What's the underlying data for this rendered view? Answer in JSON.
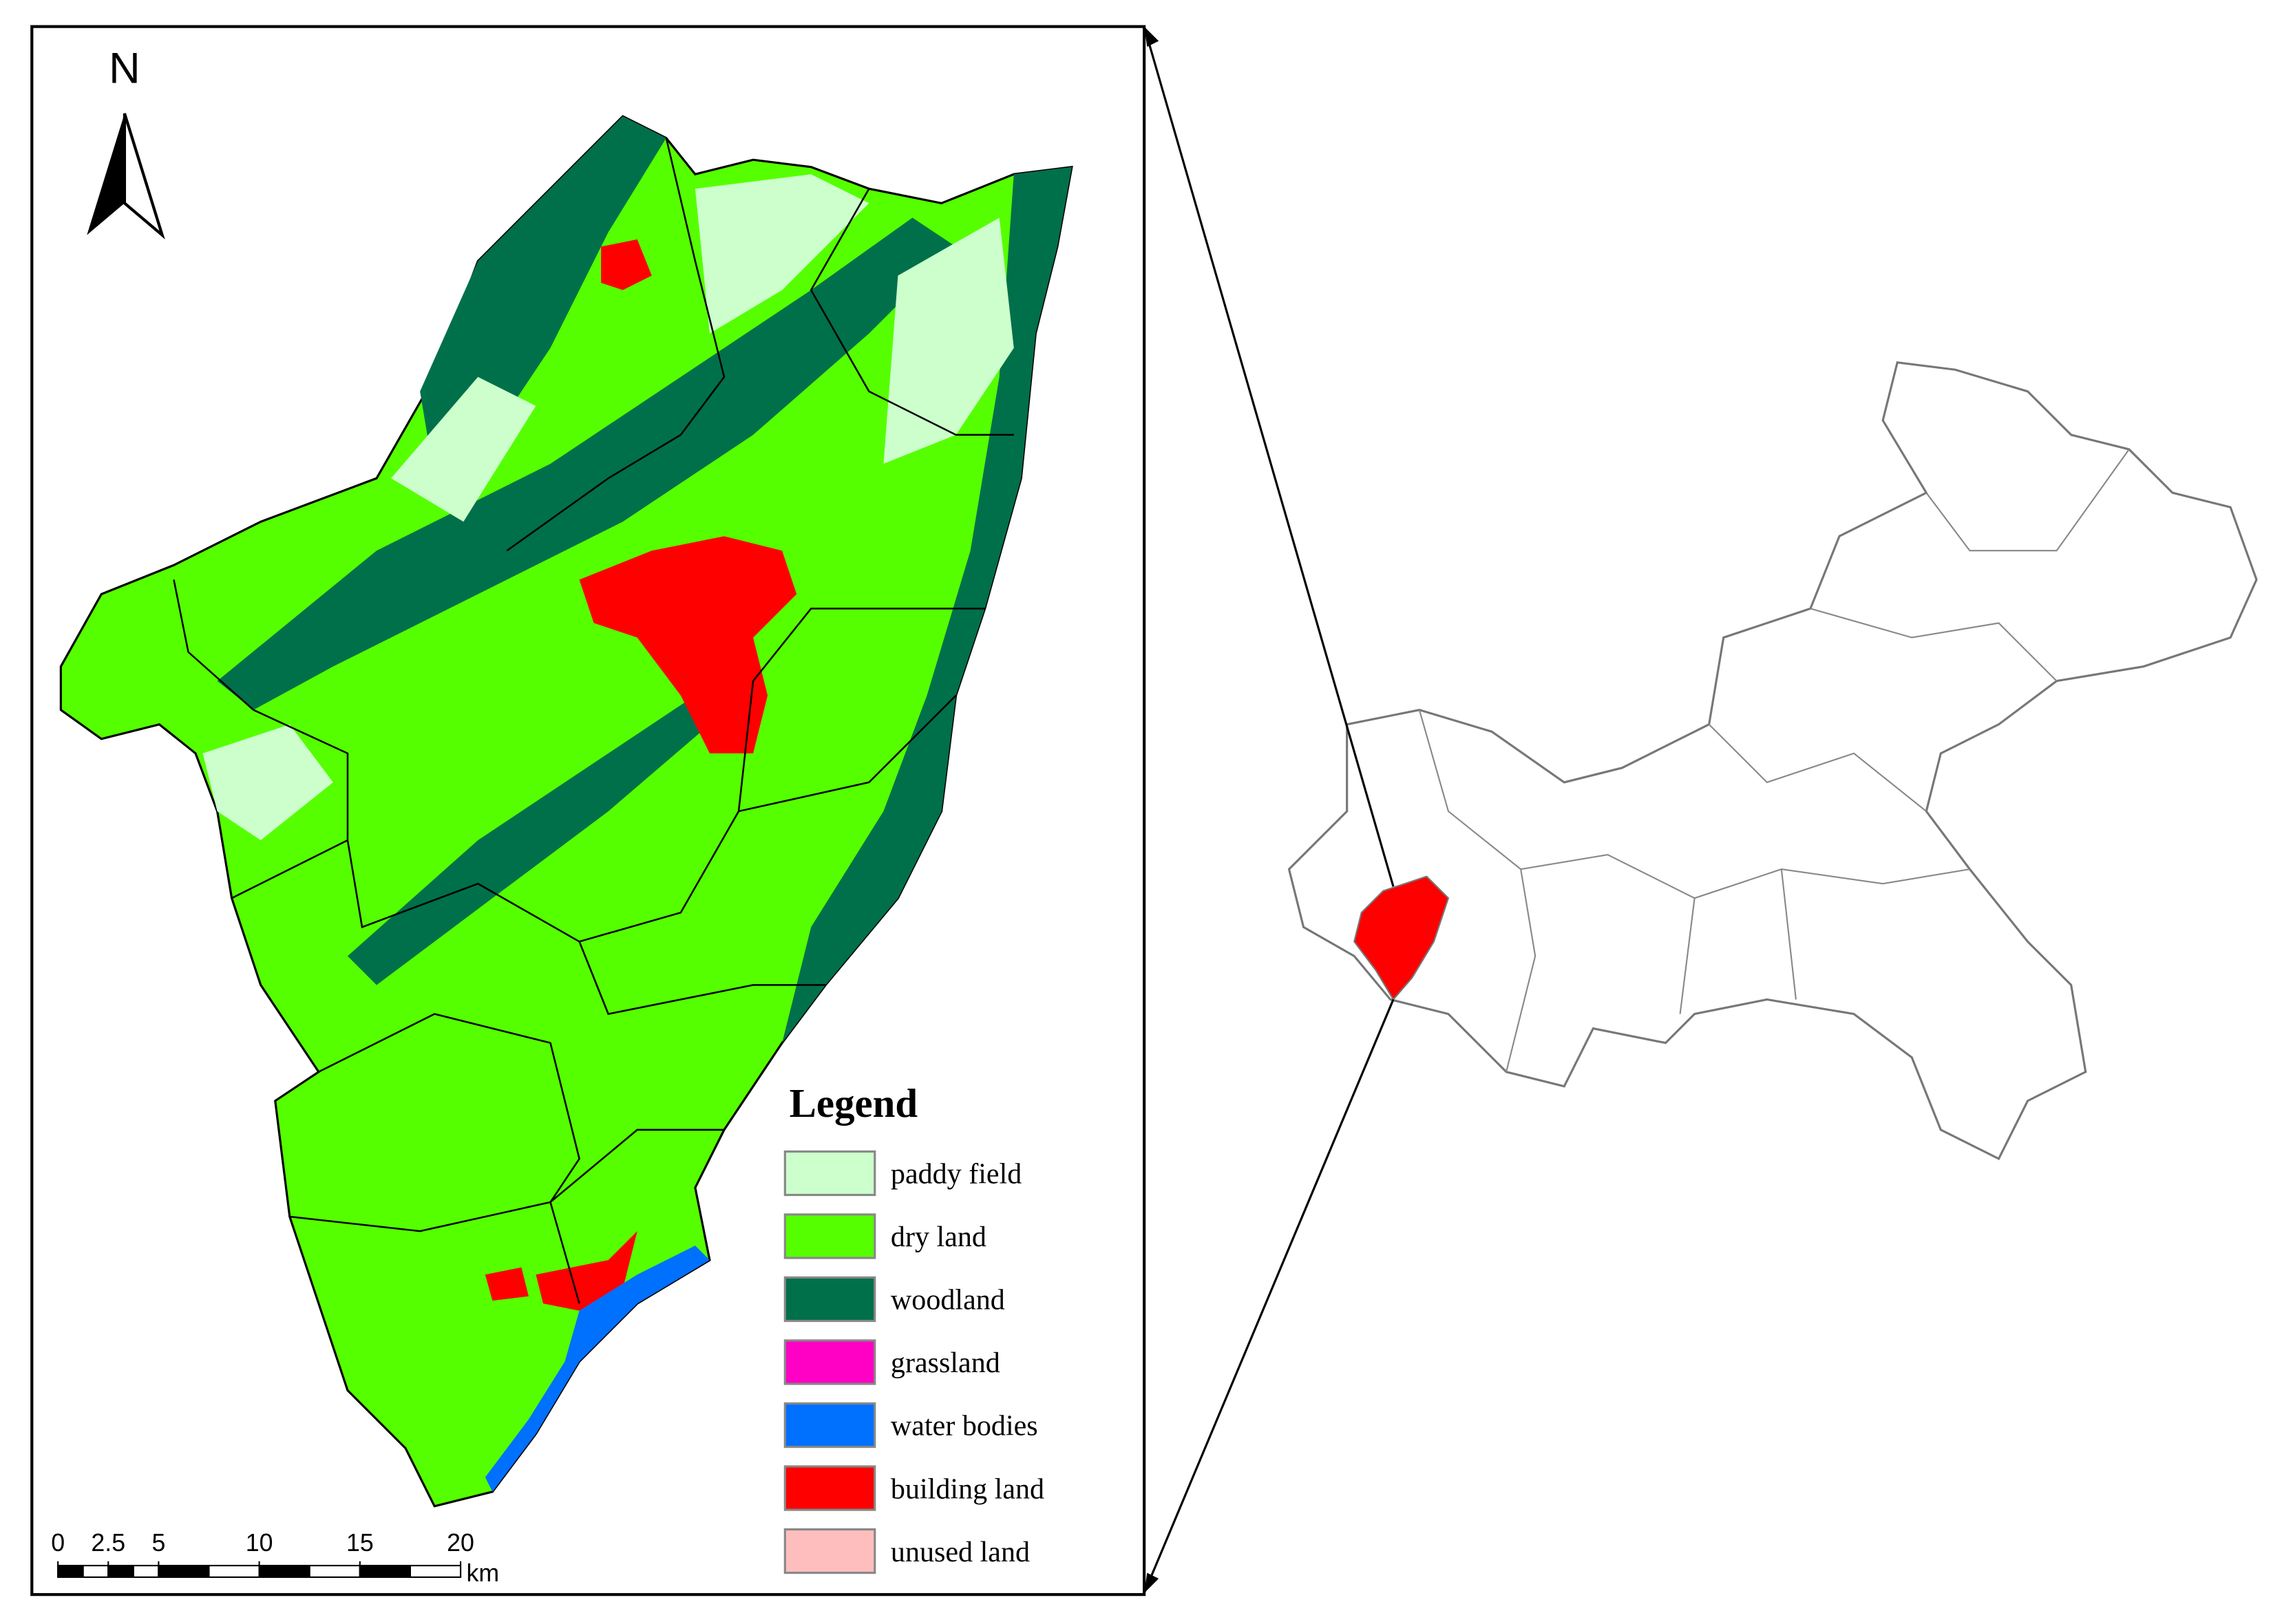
{
  "north_label": "N",
  "legend": {
    "title": "Legend",
    "items": [
      {
        "label": "paddy field",
        "color": "#ccffcc"
      },
      {
        "label": "dry land",
        "color": "#55ff00"
      },
      {
        "label": "woodland",
        "color": "#00704a"
      },
      {
        "label": "grassland",
        "color": "#ff00c5"
      },
      {
        "label": "water bodies",
        "color": "#0070ff"
      },
      {
        "label": "building land",
        "color": "#ff0000"
      },
      {
        "label": "unused land",
        "color": "#ffbebe"
      }
    ]
  },
  "scale_bar": {
    "ticks": [
      0,
      2.5,
      5,
      10,
      15,
      20
    ],
    "unit": "km"
  }
}
